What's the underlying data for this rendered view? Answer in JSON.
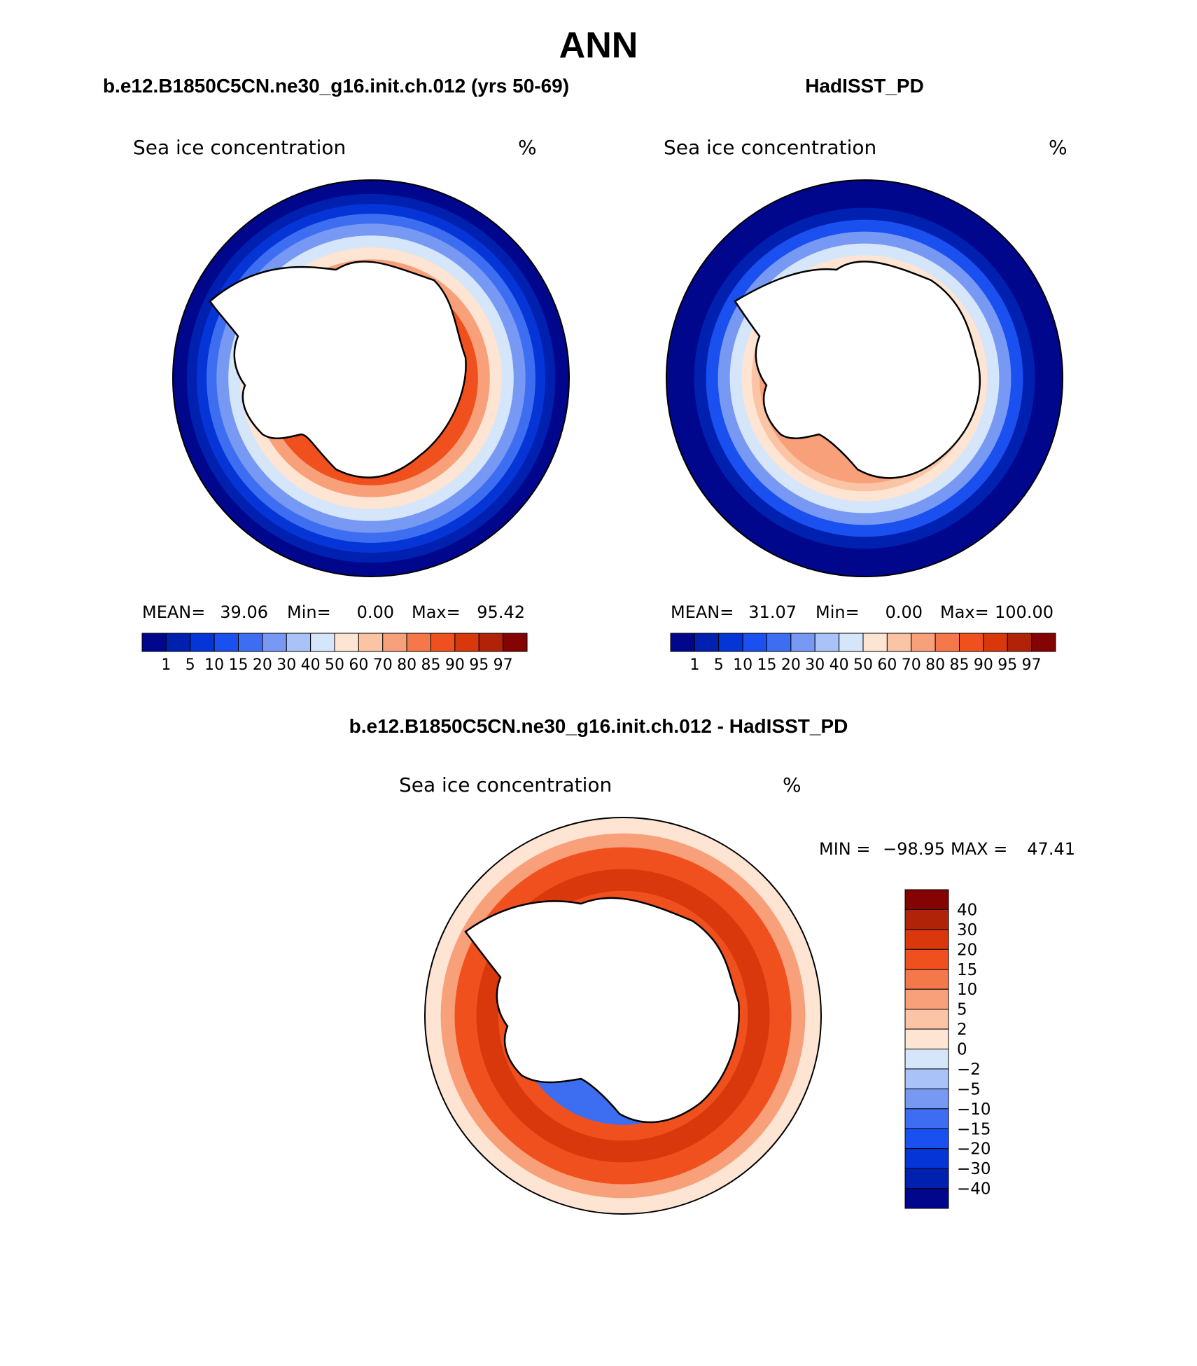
{
  "page_title": "ANN",
  "colors": {
    "land": "#ffffff",
    "coast": "#000000",
    "frame": "#000000"
  },
  "chart_data": [
    {
      "type": "heatmap",
      "projection": "south-polar-stereographic",
      "title": "b.e12.B1850C5CN.ne30_g16.init.ch.012 (yrs 50-69)",
      "variable": "Sea ice concentration",
      "units": "%",
      "stats": {
        "mean_label": "MEAN=",
        "mean": "39.06",
        "min_label": "Min=",
        "min": "0.00",
        "max_label": "Max=",
        "max": "95.42"
      },
      "levels": [
        "1",
        "5",
        "10",
        "15",
        "20",
        "30",
        "40",
        "50",
        "60",
        "70",
        "80",
        "85",
        "90",
        "95",
        "97"
      ],
      "palette": [
        "#00078c",
        "#0020b0",
        "#0535d6",
        "#1a4ff0",
        "#3d6ef2",
        "#7799f4",
        "#a9c3f8",
        "#d5e6fb",
        "#fde4d3",
        "#fbc4a4",
        "#f8a07a",
        "#f5784a",
        "#f0501e",
        "#d8380b",
        "#b02308",
        "#840303"
      ],
      "ice_edge_rings": [
        {
          "level_index": 0,
          "radius_fraction": 1.0
        },
        {
          "level_index": 1,
          "radius_fraction": 0.93
        },
        {
          "level_index": 2,
          "radius_fraction": 0.88
        },
        {
          "level_index": 4,
          "radius_fraction": 0.83
        },
        {
          "level_index": 5,
          "radius_fraction": 0.78
        },
        {
          "level_index": 7,
          "radius_fraction": 0.72
        },
        {
          "level_index": 8,
          "radius_fraction": 0.66
        },
        {
          "level_index": 10,
          "radius_fraction": 0.6
        },
        {
          "level_index": 12,
          "radius_fraction": 0.54
        }
      ]
    },
    {
      "type": "heatmap",
      "projection": "south-polar-stereographic",
      "title": "HadISST_PD",
      "variable": "Sea ice concentration",
      "units": "%",
      "stats": {
        "mean_label": "MEAN=",
        "mean": "31.07",
        "min_label": "Min=",
        "min": "0.00",
        "max_label": "Max=",
        "max": "100.00"
      },
      "levels": [
        "1",
        "5",
        "10",
        "15",
        "20",
        "30",
        "40",
        "50",
        "60",
        "70",
        "80",
        "85",
        "90",
        "95",
        "97"
      ],
      "palette": [
        "#00078c",
        "#0020b0",
        "#0535d6",
        "#1a4ff0",
        "#3d6ef2",
        "#7799f4",
        "#a9c3f8",
        "#d5e6fb",
        "#fde4d3",
        "#fbc4a4",
        "#f8a07a",
        "#f5784a",
        "#f0501e",
        "#d8380b",
        "#b02308",
        "#840303"
      ],
      "ice_edge_rings": [
        {
          "level_index": 0,
          "radius_fraction": 1.0
        },
        {
          "level_index": 1,
          "radius_fraction": 0.86
        },
        {
          "level_index": 3,
          "radius_fraction": 0.8
        },
        {
          "level_index": 5,
          "radius_fraction": 0.74
        },
        {
          "level_index": 7,
          "radius_fraction": 0.68
        },
        {
          "level_index": 8,
          "radius_fraction": 0.62
        },
        {
          "level_index": 9,
          "radius_fraction": 0.57
        },
        {
          "level_index": 10,
          "radius_fraction": 0.53
        }
      ]
    },
    {
      "type": "heatmap",
      "projection": "south-polar-stereographic",
      "title": "b.e12.B1850C5CN.ne30_g16.init.ch.012 - HadISST_PD",
      "variable": "Sea ice concentration",
      "units": "%",
      "stats": {
        "min_label": "MIN =",
        "min": "−98.95",
        "max_label": "MAX =",
        "max": "47.41"
      },
      "levels": [
        "40",
        "30",
        "20",
        "15",
        "10",
        "5",
        "2",
        "0",
        "−2",
        "−5",
        "−10",
        "−15",
        "−20",
        "−30",
        "−40"
      ],
      "palette": [
        "#840303",
        "#b02308",
        "#d8380b",
        "#f0501e",
        "#f5784a",
        "#f8a07a",
        "#fbc4a4",
        "#fde4d3",
        "#d5e6fb",
        "#a9c3f8",
        "#7799f4",
        "#3d6ef2",
        "#1a4ff0",
        "#0535d6",
        "#0020b0",
        "#00078c"
      ],
      "ice_edge_rings": [
        {
          "level_index": 7,
          "radius_fraction": 1.0
        },
        {
          "level_index": 5,
          "radius_fraction": 0.92
        },
        {
          "level_index": 3,
          "radius_fraction": 0.85
        },
        {
          "level_index": 2,
          "radius_fraction": 0.74
        },
        {
          "level_index": 3,
          "radius_fraction": 0.63
        },
        {
          "level_index": 11,
          "radius_fraction": 0.55
        }
      ]
    }
  ]
}
